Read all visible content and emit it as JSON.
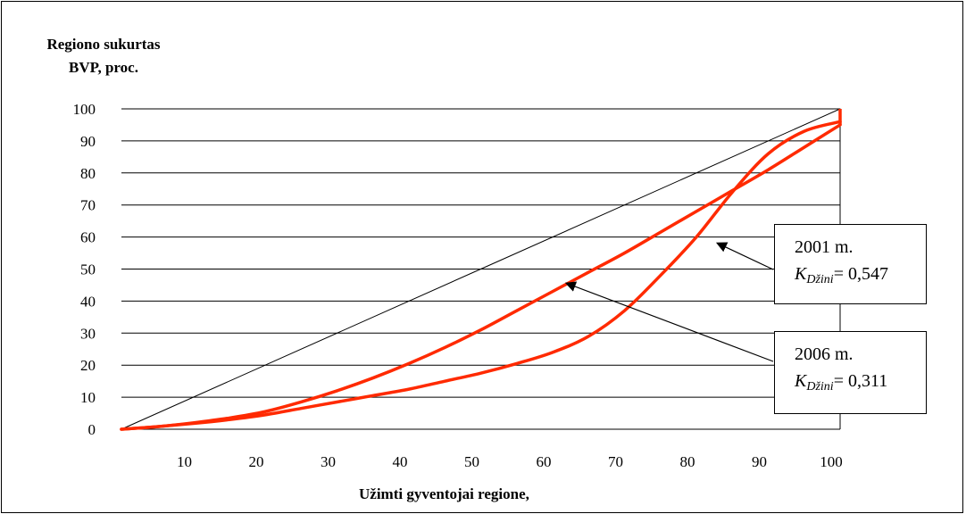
{
  "chart_data": {
    "type": "line",
    "ylabel_lines": [
      "Regiono sukurtas",
      "BVP, proc."
    ],
    "xlabel": "Užimti gyventojai regione,",
    "y_ticks": [
      0,
      10,
      20,
      30,
      40,
      50,
      60,
      70,
      80,
      90,
      100
    ],
    "x_ticks": [
      10,
      20,
      30,
      40,
      50,
      60,
      70,
      80,
      90,
      100
    ],
    "ylim": [
      0,
      100
    ],
    "xlim": [
      0,
      100
    ],
    "grid": "horizontal",
    "series": [
      {
        "name": "",
        "style": "equality",
        "color": "#000000",
        "x": [
          0,
          100
        ],
        "y": [
          0,
          100
        ]
      },
      {
        "name": "2001 m.",
        "color": "#ff2a00",
        "x": [
          0,
          5,
          10,
          15,
          20,
          25,
          30,
          35,
          40,
          45,
          50,
          55,
          60,
          65,
          70,
          75,
          80,
          85,
          90,
          95,
          100
        ],
        "y": [
          0,
          0.8,
          2,
          3.5,
          5.5,
          8.5,
          12,
          16,
          20.5,
          25.5,
          31,
          37,
          43,
          49,
          55,
          61.5,
          68,
          74.5,
          81,
          88,
          95
        ]
      },
      {
        "name": "2006 m.",
        "color": "#ff2a00",
        "x": [
          0,
          5,
          10,
          15,
          20,
          25,
          30,
          35,
          40,
          45,
          50,
          55,
          60,
          65,
          70,
          75,
          80,
          85,
          90,
          95,
          100
        ],
        "y": [
          0,
          0.8,
          1.8,
          3,
          4.5,
          6.5,
          8.5,
          10.5,
          12.5,
          15,
          17.5,
          20.5,
          24,
          29,
          37,
          48,
          60,
          74,
          86,
          93,
          96
        ]
      }
    ],
    "annotations": [
      {
        "title": "2001 m.",
        "k_label": "K",
        "k_sub": "Džini",
        "k_value": "= 0,547"
      },
      {
        "title": "2006 m.",
        "k_label": "K",
        "k_sub": "Džini",
        "k_value": "= 0,311"
      }
    ]
  }
}
